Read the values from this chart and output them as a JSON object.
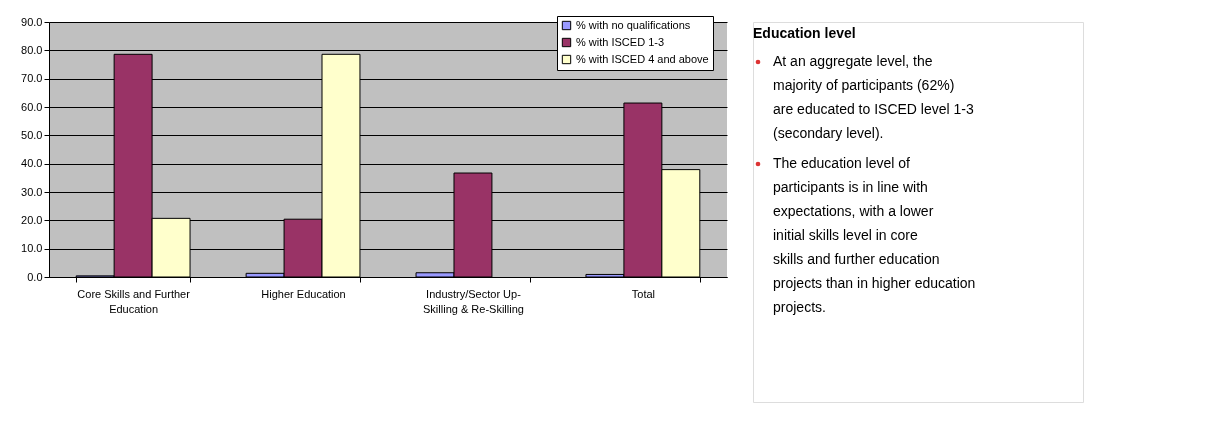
{
  "chart_data": [
    {
      "type": "bar",
      "categories": [
        "Core Skills and Further Education",
        "Higher Education",
        "Industry/Sector Up-Skilling & Re-Skilling",
        "Total"
      ],
      "series": [
        {
          "name": "% with no qualifications",
          "color": "#9999ff",
          "values": [
            0.4,
            1.3,
            1.5,
            0.9
          ]
        },
        {
          "name": "% with ISCED 1-3",
          "color": "#993366",
          "values": [
            78.6,
            20.4,
            36.7,
            61.4
          ]
        },
        {
          "name": "% with ISCED 4 and above",
          "color": "#ffffcc",
          "values": [
            20.7,
            78.6,
            null,
            37.9
          ]
        }
      ],
      "ylim": [
        0,
        90
      ],
      "yticks": [
        {
          "value": 0,
          "label": "0.0"
        },
        {
          "value": 10,
          "label": "10.0"
        },
        {
          "value": 20,
          "label": "20.0"
        },
        {
          "value": 30,
          "label": "30.0"
        },
        {
          "value": 40,
          "label": "40.0"
        },
        {
          "value": 50,
          "label": "50.0"
        },
        {
          "value": 60,
          "label": "60.0"
        },
        {
          "value": 70,
          "label": "70.0"
        },
        {
          "value": 80,
          "label": "80.0"
        },
        {
          "value": 90,
          "label": "90.0"
        }
      ],
      "grid": "y",
      "legend": "top right"
    },
    {
      "type": "other",
      "title": "Education level",
      "annotations": [
        "At an aggregate level, the majority of participants (62%) are educated to ISCED level 1-3 (secondary level).",
        "The education level of participants is in line with expectations, with a lower initial skills level in core skills and further education projects than in higher education projects."
      ]
    }
  ]
}
